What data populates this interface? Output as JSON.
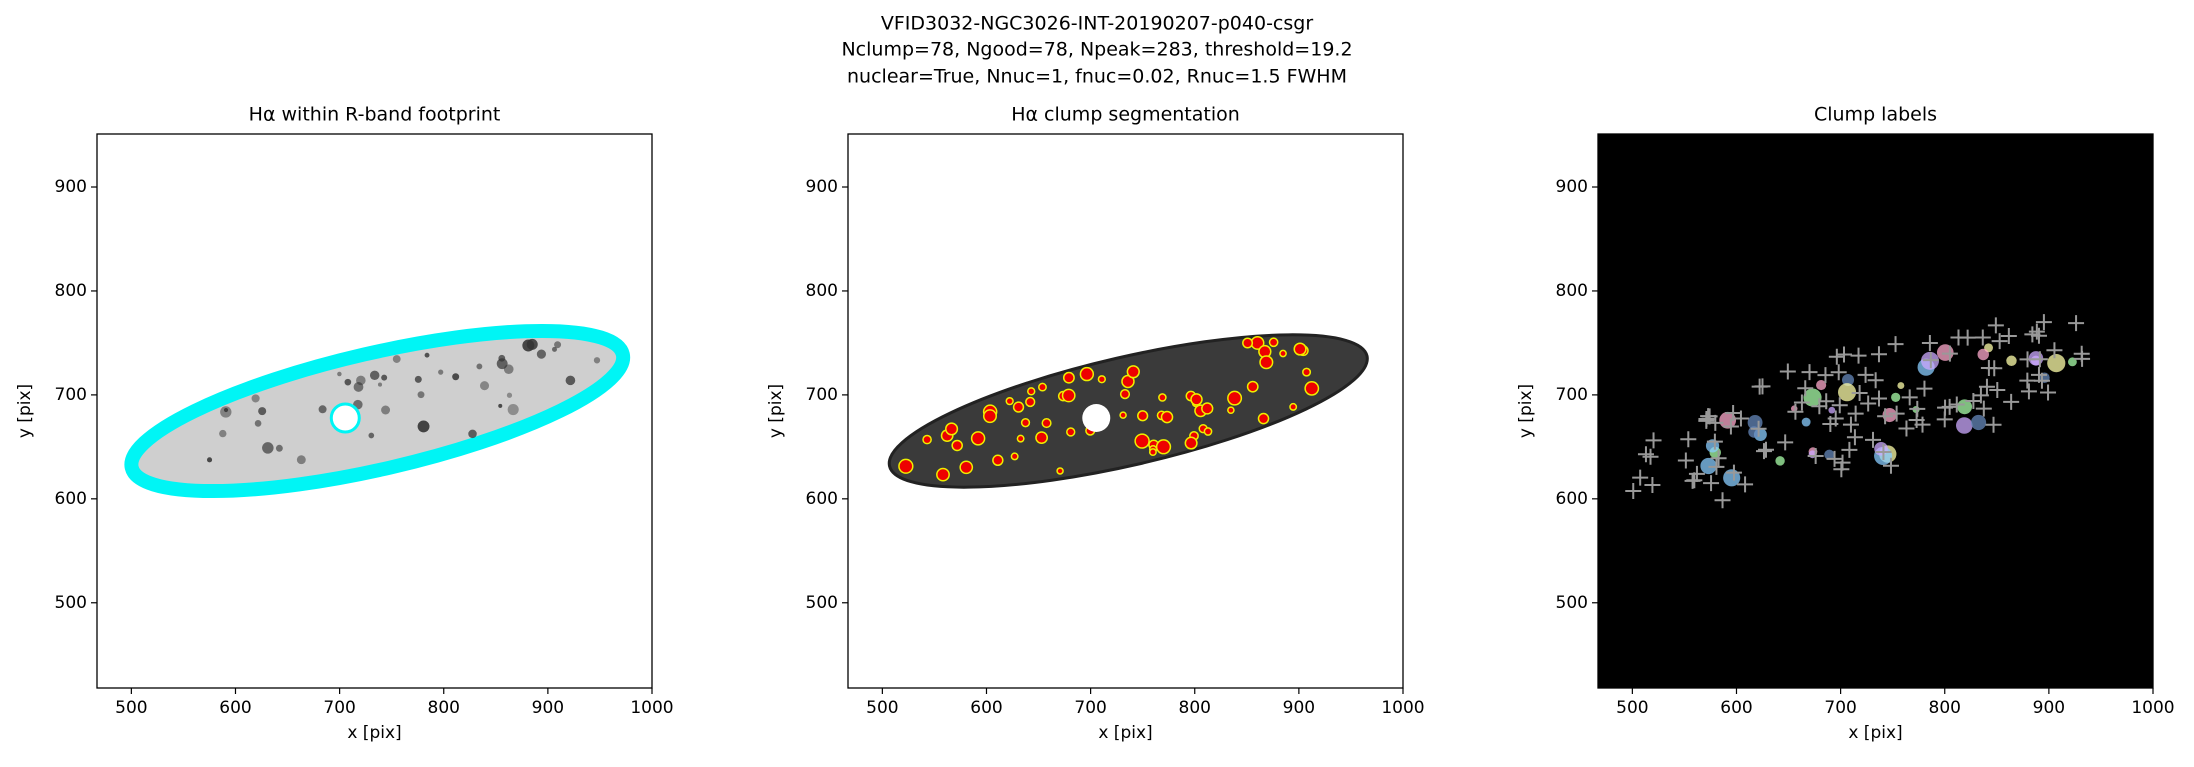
{
  "figure_title": [
    "VFID3032-NGC3026-INT-20190207-p040-csgr",
    "Nclump=78, Ngood=78, Npeak=283, threshold=19.2",
    "nuclear=True, Nnuc=1, fnuc=0.02, Rnuc=1.5 FWHM"
  ],
  "chart_data": [
    {
      "type": "image",
      "title": "Hα within R-band footprint",
      "xlabel": "x [pix]",
      "ylabel": "y [pix]",
      "facecolor": "white",
      "xlim": [
        467,
        1000
      ],
      "ylim": [
        418,
        951
      ],
      "xticks": [
        500,
        600,
        700,
        800,
        900,
        1000
      ],
      "yticks": [
        500,
        600,
        700,
        800,
        900
      ]
    },
    {
      "type": "image",
      "title": "Hα clump segmentation",
      "xlabel": "x [pix]",
      "ylabel": "y [pix]",
      "facecolor": "white",
      "xlim": [
        467,
        1000
      ],
      "ylim": [
        418,
        951
      ],
      "xticks": [
        500,
        600,
        700,
        800,
        900,
        1000
      ],
      "yticks": [
        500,
        600,
        700,
        800,
        900
      ]
    },
    {
      "type": "image",
      "title": "Clump labels",
      "xlabel": "x [pix]",
      "ylabel": "y [pix]",
      "facecolor": "black",
      "xlim": [
        467,
        1000
      ],
      "ylim": [
        418,
        951
      ],
      "xticks": [
        500,
        600,
        700,
        800,
        900,
        1000
      ],
      "yticks": [
        500,
        600,
        700,
        800,
        900
      ]
    }
  ]
}
